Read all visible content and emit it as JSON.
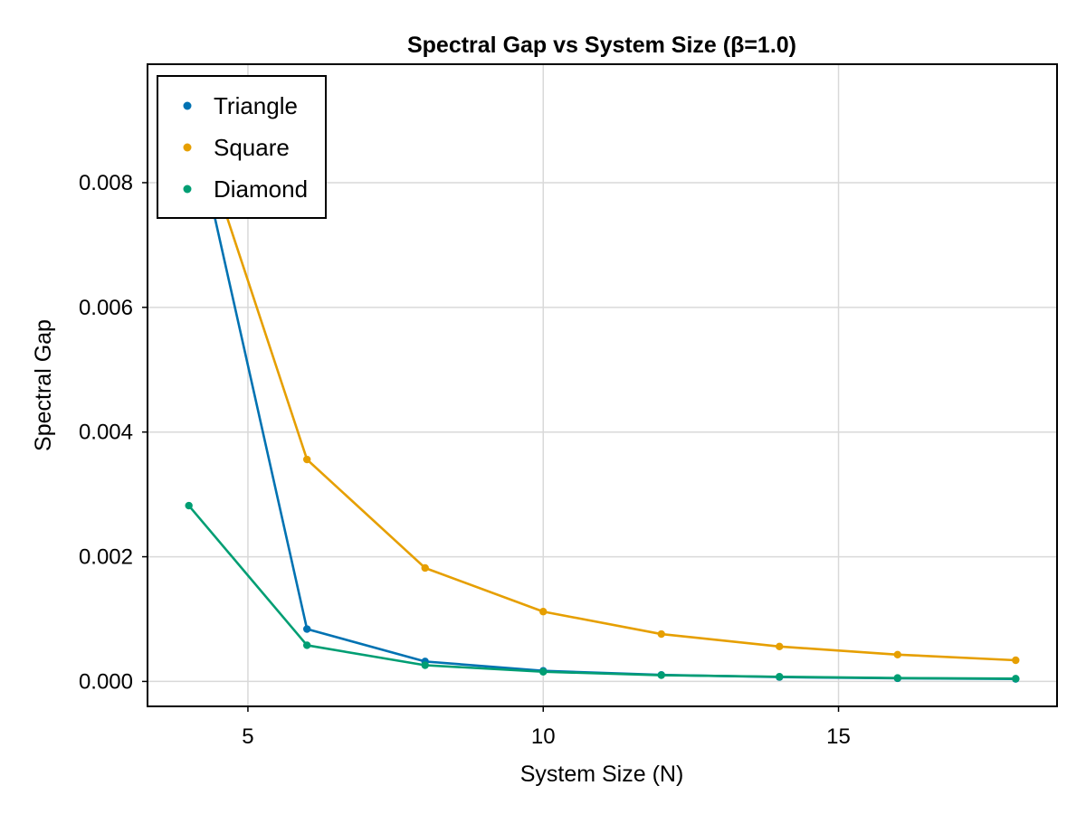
{
  "chart_data": {
    "type": "line",
    "title": "Spectral Gap vs System Size (β=1.0)",
    "xlabel": "System Size (N)",
    "ylabel": "Spectral Gap",
    "xlim": [
      3.3,
      18.7
    ],
    "ylim": [
      -0.0004,
      0.0099
    ],
    "xticks": [
      5,
      10,
      15
    ],
    "xtick_labels": [
      "5",
      "10",
      "15"
    ],
    "yticks": [
      0,
      0.002,
      0.004,
      0.006,
      0.008
    ],
    "ytick_labels": [
      "0.000",
      "0.002",
      "0.004",
      "0.006",
      "0.008"
    ],
    "grid": true,
    "legend_position": "top-left",
    "series": [
      {
        "name": "Triangle",
        "color": "#0072b2",
        "x": [
          4,
          6,
          8,
          10,
          12,
          14,
          16,
          18
        ],
        "y": [
          0.0093,
          0.00084,
          0.00032,
          0.00017,
          0.000105,
          7e-05,
          5e-05,
          4e-05
        ]
      },
      {
        "name": "Square",
        "color": "#e69f00",
        "x": [
          4,
          6,
          8,
          10,
          12,
          14,
          16,
          18
        ],
        "y": [
          0.0093,
          0.00356,
          0.00182,
          0.00112,
          0.00076,
          0.00056,
          0.00043,
          0.00034
        ]
      },
      {
        "name": "Diamond",
        "color": "#009e73",
        "x": [
          4,
          6,
          8,
          10,
          12,
          14,
          16,
          18
        ],
        "y": [
          0.00282,
          0.00058,
          0.00026,
          0.000155,
          0.0001,
          7.5e-05,
          5.5e-05,
          4.5e-05
        ]
      }
    ]
  }
}
